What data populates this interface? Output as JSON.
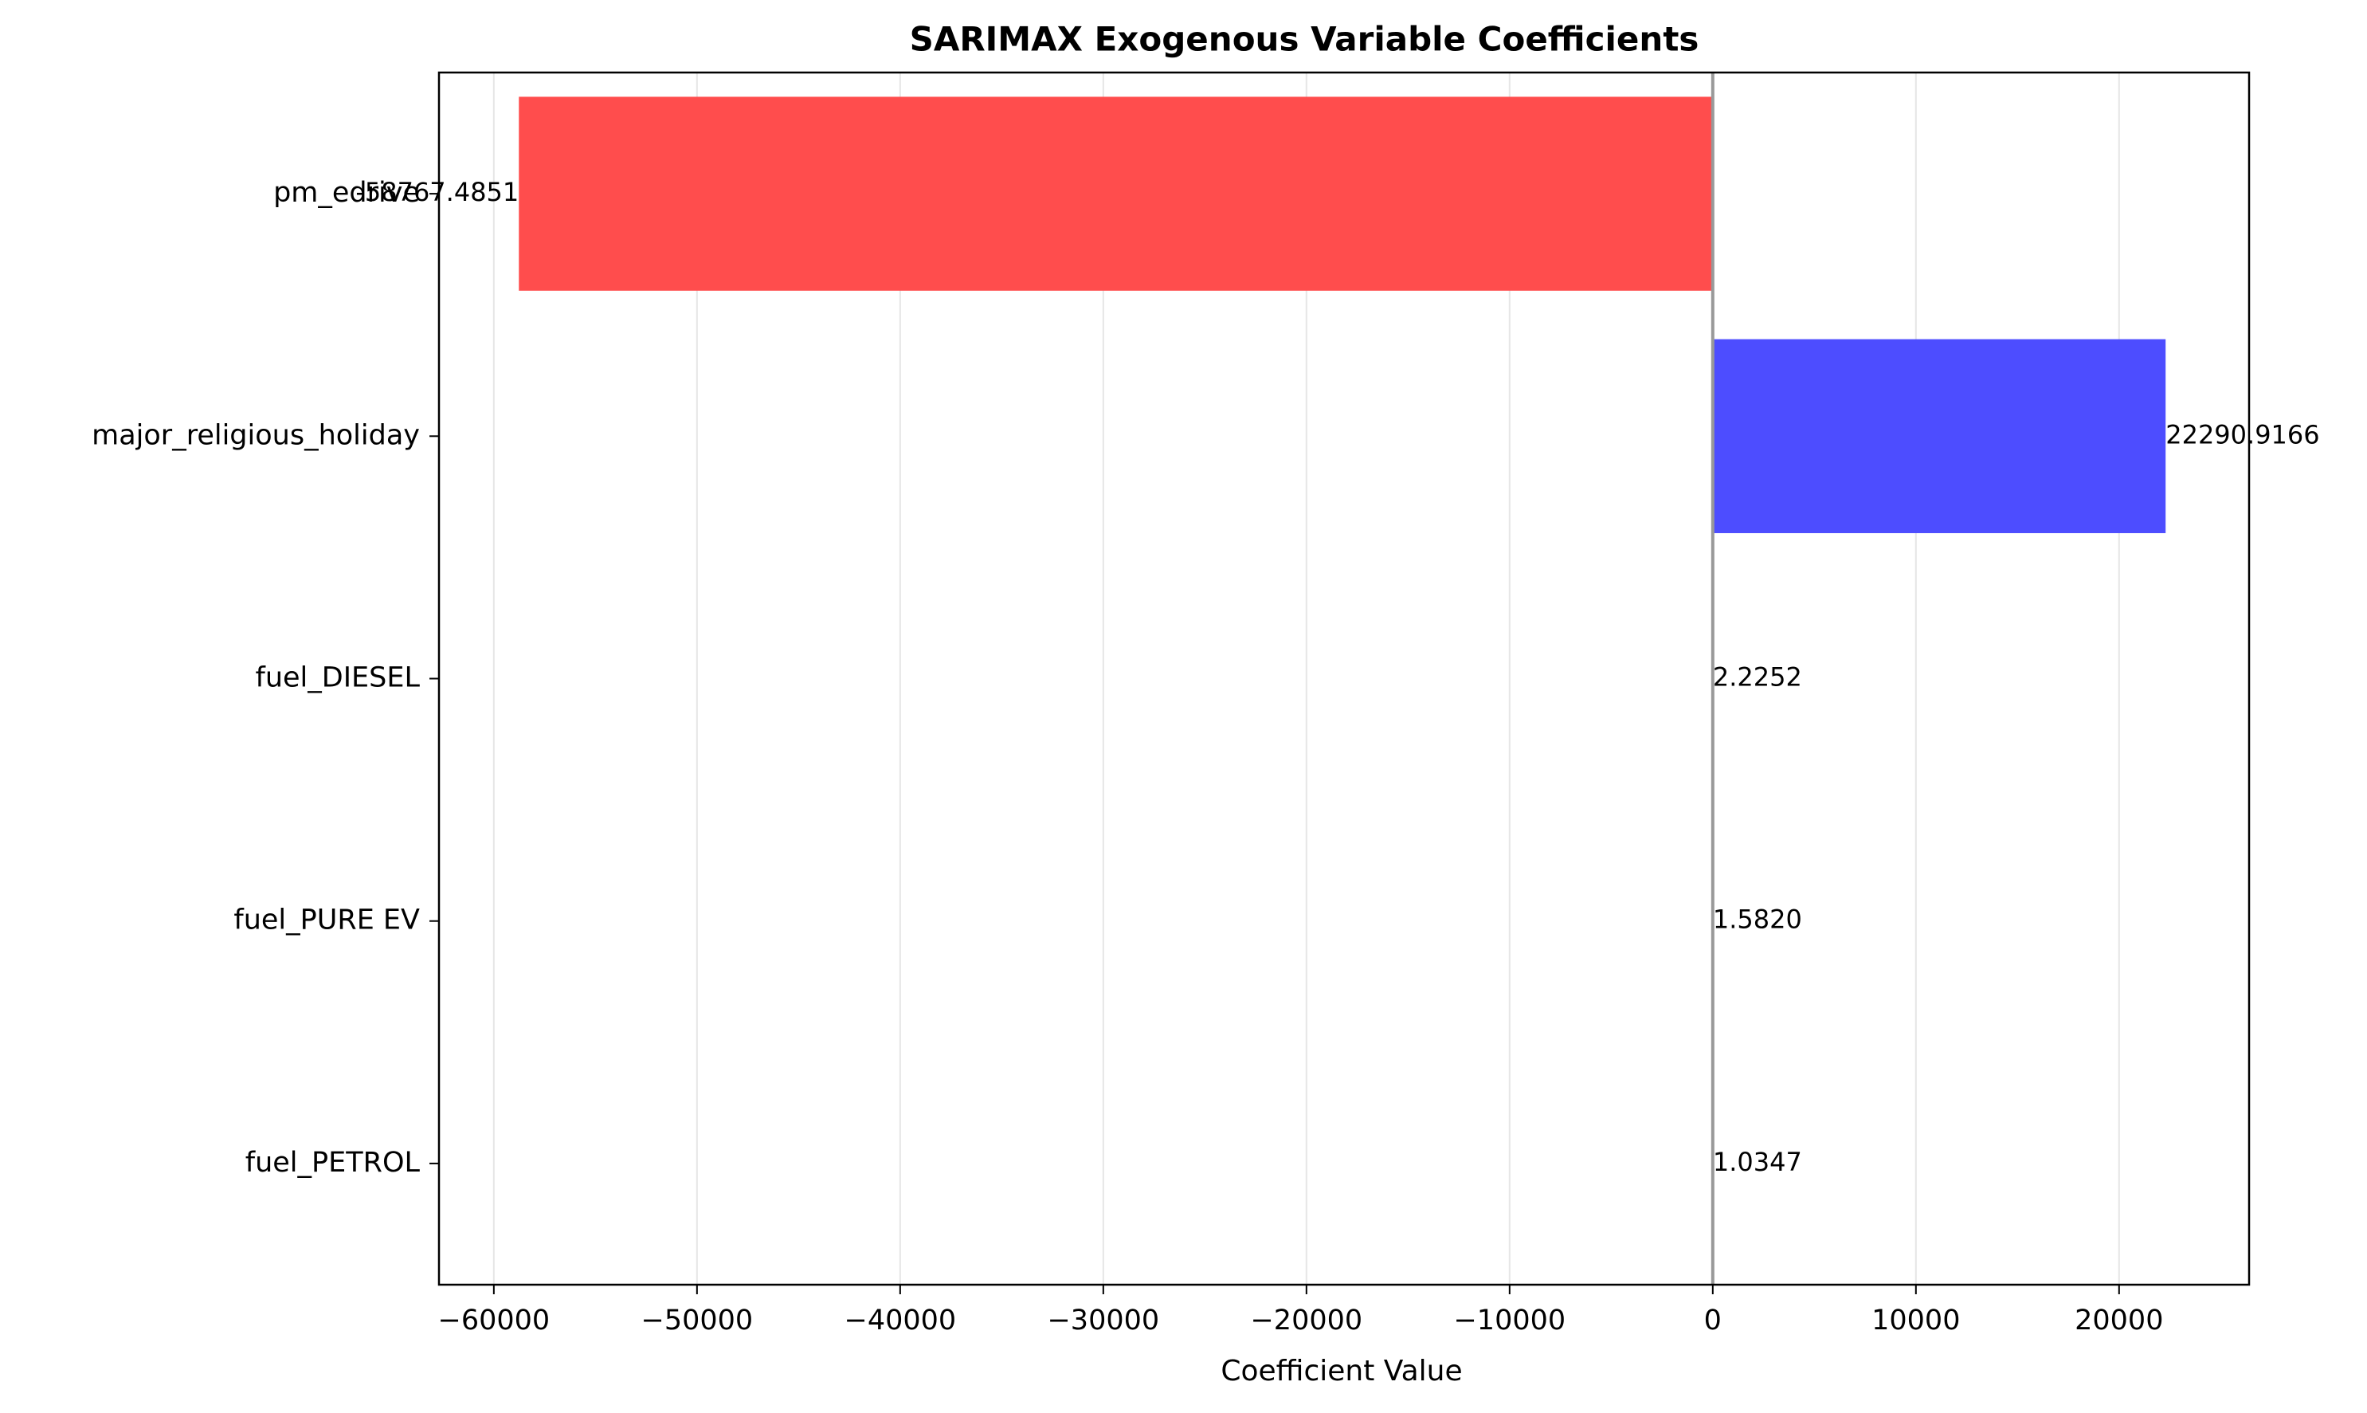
{
  "chart_data": {
    "type": "bar",
    "orientation": "horizontal",
    "title": "SARIMAX Exogenous Variable Coefficients",
    "xlabel": "Coefficient Value",
    "ylabel": "",
    "categories": [
      "pm_edrive",
      "major_religious_holiday",
      "fuel_DIESEL",
      "fuel_PURE EV",
      "fuel_PETROL"
    ],
    "values": [
      -58767.4851,
      22290.9166,
      2.2252,
      1.582,
      1.0347
    ],
    "value_labels": [
      "-58767.4851",
      "22290.9166",
      "2.2252",
      "1.5820",
      "1.0347"
    ],
    "xlim": [
      -62700,
      26400
    ],
    "xticks": [
      -60000,
      -50000,
      -40000,
      -30000,
      -20000,
      -10000,
      0,
      10000,
      20000
    ],
    "xtick_labels": [
      "−60000",
      "−50000",
      "−40000",
      "−30000",
      "−20000",
      "−10000",
      "0",
      "10000",
      "20000"
    ],
    "grid": "vertical",
    "legend": "none",
    "colors": {
      "negative": "#ff4d4d",
      "positive": "#4d4dff",
      "zero_line": "#999999",
      "grid": "#e6e6e6"
    }
  }
}
